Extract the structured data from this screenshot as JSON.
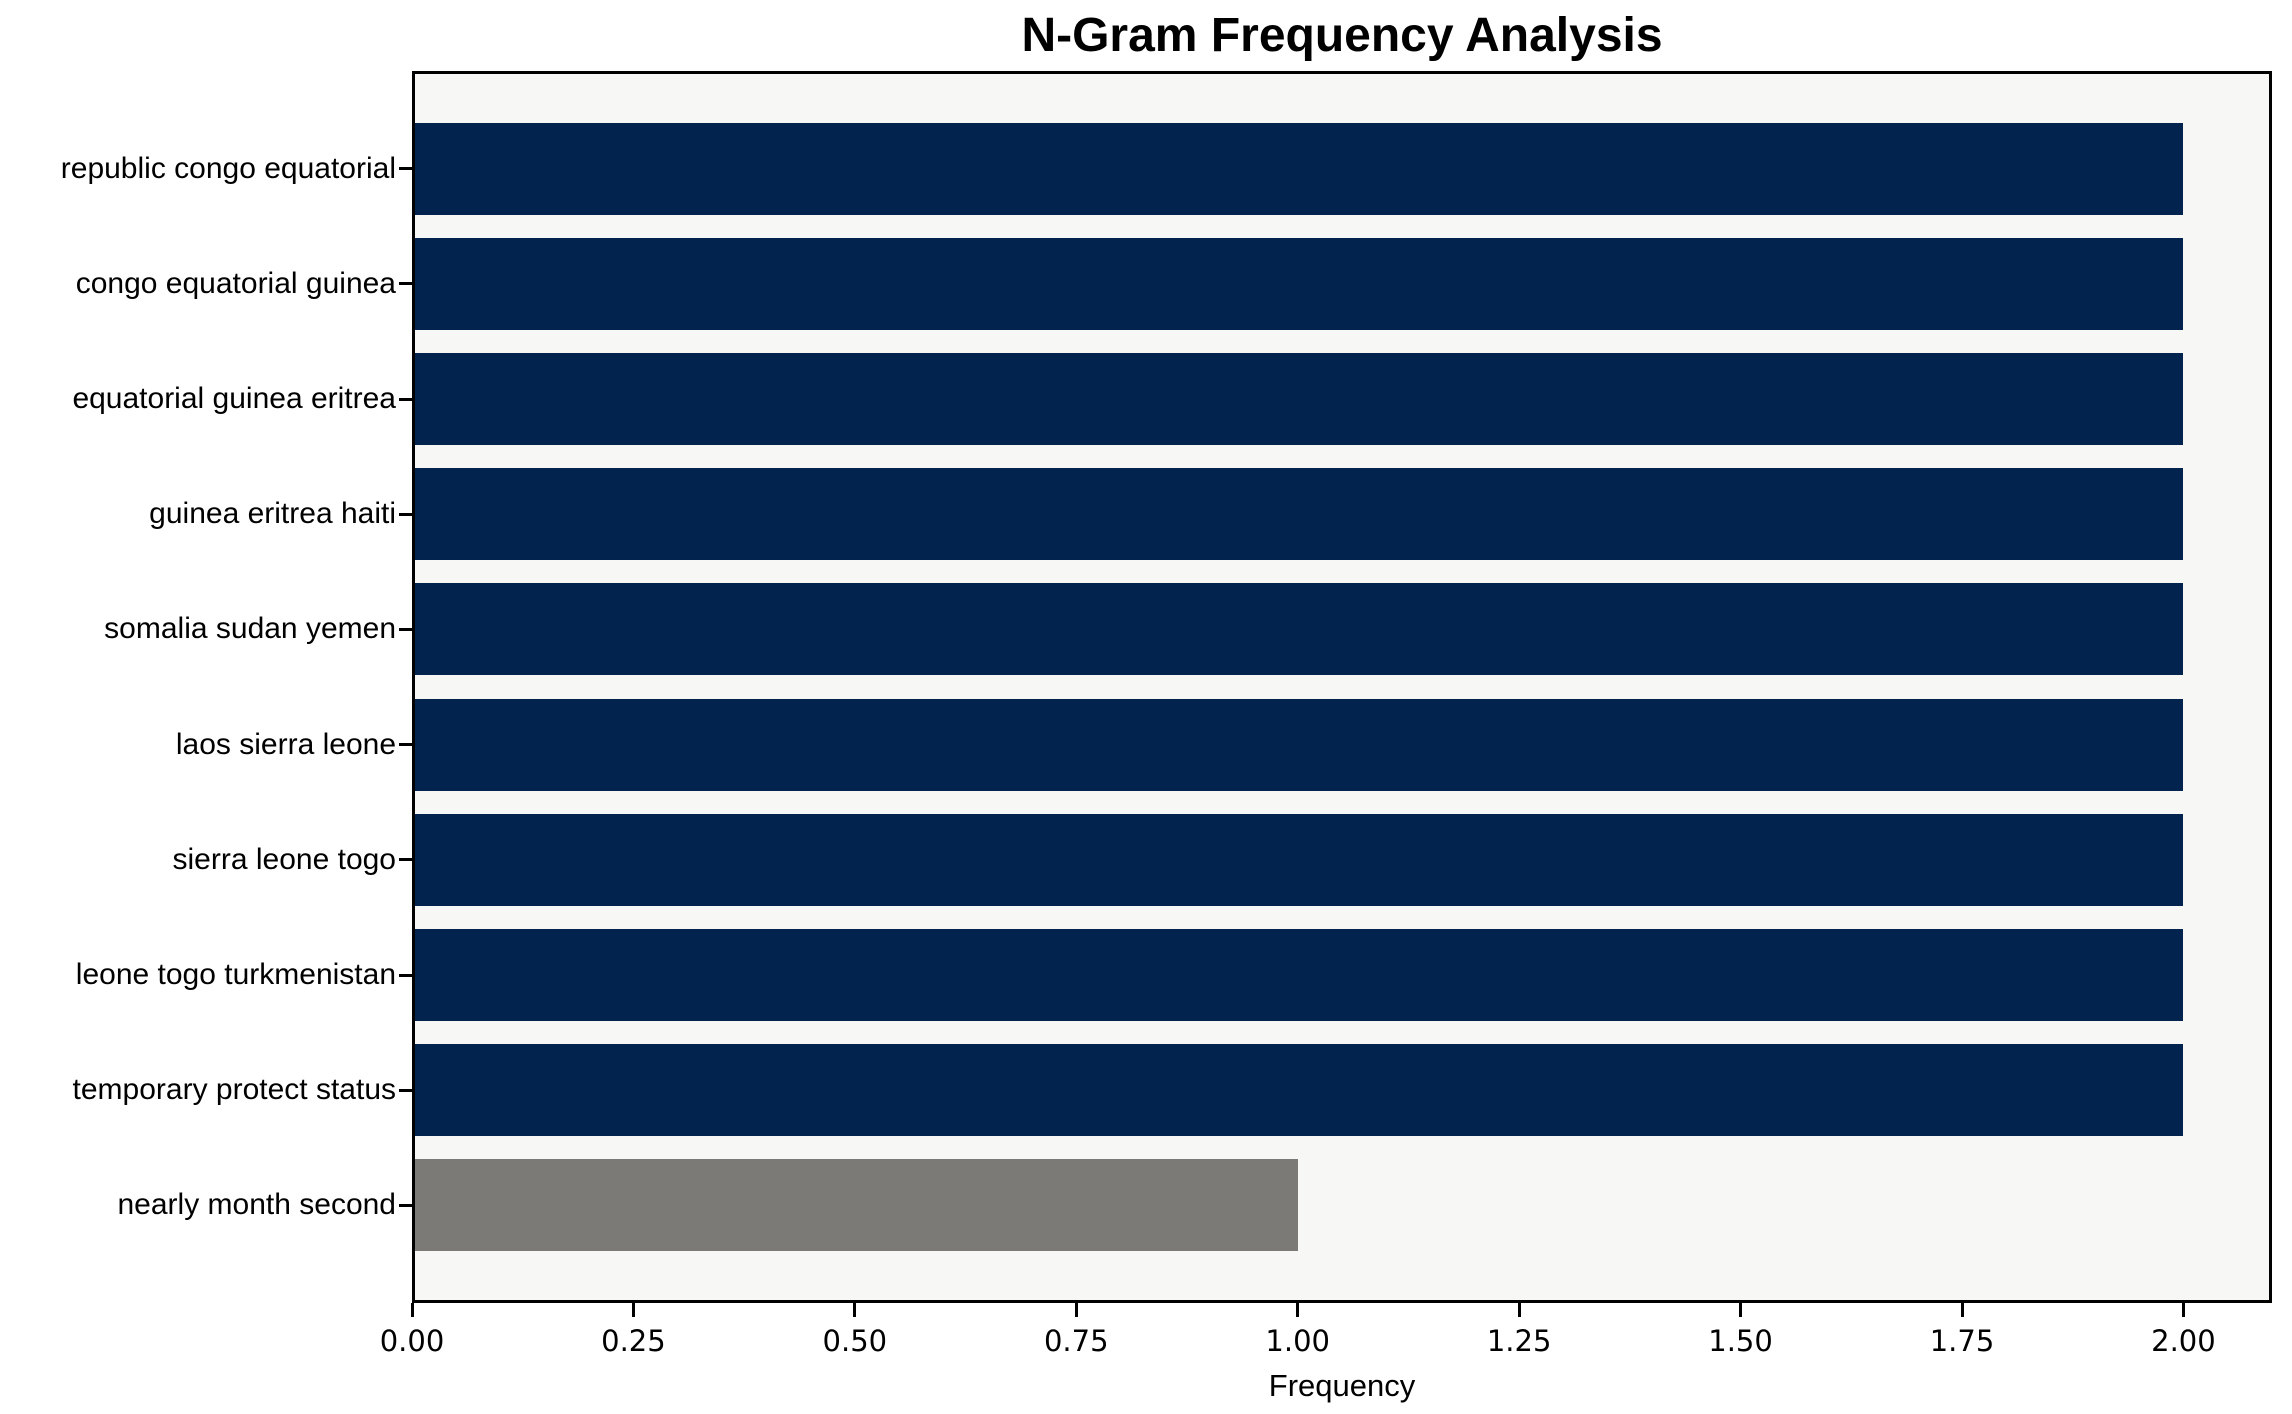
{
  "chart_data": {
    "type": "bar",
    "orientation": "horizontal",
    "title": "N-Gram Frequency Analysis",
    "xlabel": "Frequency",
    "ylabel": "",
    "categories": [
      "republic congo equatorial",
      "congo equatorial guinea",
      "equatorial guinea eritrea",
      "guinea eritrea haiti",
      "somalia sudan yemen",
      "laos sierra leone",
      "sierra leone togo",
      "leone togo turkmenistan",
      "temporary protect status",
      "nearly month second"
    ],
    "values": [
      2,
      2,
      2,
      2,
      2,
      2,
      2,
      2,
      2,
      1
    ],
    "bar_colors": [
      "#02234d",
      "#02234d",
      "#02234d",
      "#02234d",
      "#02234d",
      "#02234d",
      "#02234d",
      "#02234d",
      "#02234d",
      "#7b7a77"
    ],
    "xlim": [
      0,
      2.1
    ],
    "xtick_values": [
      0.0,
      0.25,
      0.5,
      0.75,
      1.0,
      1.25,
      1.5,
      1.75,
      2.0
    ],
    "xtick_labels": [
      "0.00",
      "0.25",
      "0.50",
      "0.75",
      "1.00",
      "1.25",
      "1.50",
      "1.75",
      "2.00"
    ],
    "grid": false,
    "legend": null,
    "colors": {
      "plot_background": "#f7f7f6",
      "frame": "#000000",
      "bar_primary": "#02234d",
      "bar_secondary": "#7b7a77"
    }
  }
}
